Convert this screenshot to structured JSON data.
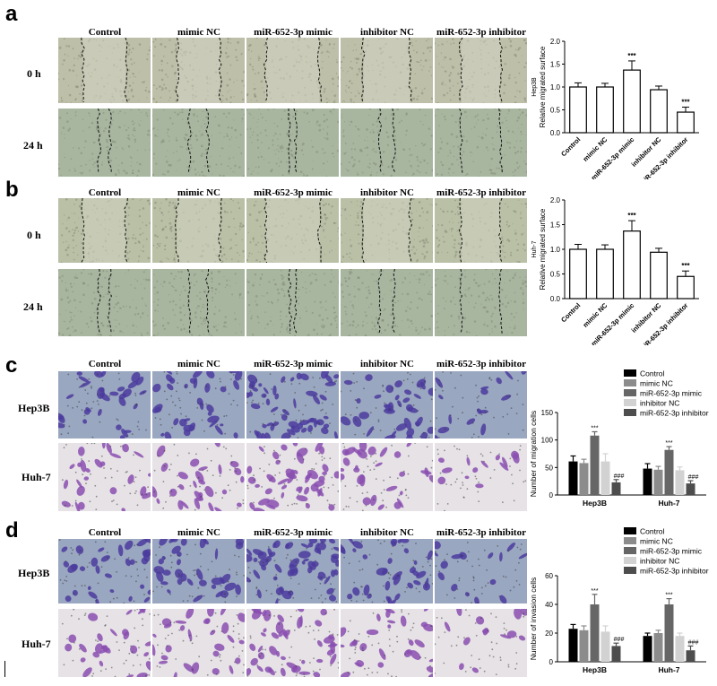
{
  "columns": [
    "Control",
    "mimic NC",
    "miR-652-3p mimic",
    "inhibitor NC",
    "miR-652-3p inhibitor"
  ],
  "panels": [
    {
      "letter": "a",
      "rows": [
        "0 h",
        "24 h"
      ]
    },
    {
      "letter": "b",
      "rows": [
        "0 h",
        "24 h"
      ]
    },
    {
      "letter": "c",
      "rows": [
        "Hep3B",
        "Huh-7"
      ]
    },
    {
      "letter": "d",
      "rows": [
        "Hep3B",
        "Huh-7"
      ]
    }
  ],
  "colors": {
    "wound_bg": "#bdbfa8",
    "wound_bg_b": "#b9c0a6",
    "wound_bg_24": "#a8b6a0",
    "stain_bg": "#9aa7c0",
    "stain_cell": "#4b3b9e",
    "stain_bg_huh": "#e6e2e6",
    "stain_cell_huh": "#8a4fb0",
    "bar_control": "#000000",
    "bar_mimicnc": "#8c8c8c",
    "bar_mimic": "#666666",
    "bar_inhibnc": "#d2d2d2",
    "bar_inhib": "#4d4d4d"
  },
  "chart_data": [
    {
      "type": "bar",
      "panel": "a",
      "categories": [
        "Control",
        "mimic NC",
        "miR-652-3p mimic",
        "inhibitor NC",
        "miR-652-3p inhibitor"
      ],
      "values": [
        1.0,
        1.0,
        1.37,
        0.94,
        0.45
      ],
      "errors": [
        0.09,
        0.08,
        0.2,
        0.08,
        0.11
      ],
      "annotations": [
        "",
        "",
        "***",
        "",
        "***"
      ],
      "ylabel": "Relative migrated surface",
      "ylabel2": "Hep3B",
      "ylim": [
        0,
        2.0
      ],
      "yticks": [
        "0.0",
        "0.5",
        "1.0",
        "1.5",
        "2.0"
      ]
    },
    {
      "type": "bar",
      "panel": "b",
      "categories": [
        "Control",
        "mimic NC",
        "miR-652-3p mimic",
        "inhibitor NC",
        "miR-652-3p inhibitor"
      ],
      "values": [
        1.0,
        1.0,
        1.37,
        0.94,
        0.45
      ],
      "errors": [
        0.1,
        0.09,
        0.21,
        0.08,
        0.11
      ],
      "annotations": [
        "",
        "",
        "***",
        "",
        "***"
      ],
      "ylabel": "Relative migrated surface",
      "ylabel2": "Huh-7",
      "ylim": [
        0,
        2.0
      ],
      "yticks": [
        "0.0",
        "0.5",
        "1.0",
        "1.5",
        "2.0"
      ]
    },
    {
      "type": "bar",
      "panel": "c",
      "categories": [
        "Hep3B",
        "Huh-7"
      ],
      "series": [
        {
          "name": "Control",
          "values": [
            61,
            48
          ],
          "errors": [
            10,
            9
          ]
        },
        {
          "name": "mimic NC",
          "values": [
            58,
            46
          ],
          "errors": [
            7,
            6
          ]
        },
        {
          "name": "miR-652-3p mimic",
          "values": [
            108,
            82
          ],
          "errors": [
            7,
            6
          ]
        },
        {
          "name": "inhibitor NC",
          "values": [
            61,
            45
          ],
          "errors": [
            14,
            6
          ]
        },
        {
          "name": "miR-652-3p inhibitor",
          "values": [
            23,
            21
          ],
          "errors": [
            5,
            5
          ]
        }
      ],
      "annotations": [
        [
          "",
          "",
          "***",
          "",
          "###"
        ],
        [
          "",
          "",
          "***",
          "",
          "###"
        ]
      ],
      "ylabel": "Number of migration cells",
      "ylim": [
        0,
        150
      ],
      "yticks": [
        "0",
        "50",
        "100",
        "150"
      ],
      "legend": "top-right"
    },
    {
      "type": "bar",
      "panel": "d",
      "categories": [
        "Hep3B",
        "Huh-7"
      ],
      "series": [
        {
          "name": "Control",
          "values": [
            23,
            18
          ],
          "errors": [
            3,
            2
          ]
        },
        {
          "name": "mimic NC",
          "values": [
            22,
            20
          ],
          "errors": [
            3,
            2
          ]
        },
        {
          "name": "miR-652-3p mimic",
          "values": [
            40,
            40
          ],
          "errors": [
            7,
            4
          ]
        },
        {
          "name": "inhibitor NC",
          "values": [
            21,
            18
          ],
          "errors": [
            4,
            2
          ]
        },
        {
          "name": "miR-652-3p inhibitor",
          "values": [
            11,
            8
          ],
          "errors": [
            2,
            3
          ]
        }
      ],
      "annotations": [
        [
          "",
          "",
          "***",
          "",
          "###"
        ],
        [
          "",
          "",
          "***",
          "",
          "###"
        ]
      ],
      "ylabel": "Number of invasion cells",
      "ylim": [
        0,
        60
      ],
      "yticks": [
        "0",
        "20",
        "40",
        "60"
      ],
      "legend": "top-right"
    }
  ]
}
